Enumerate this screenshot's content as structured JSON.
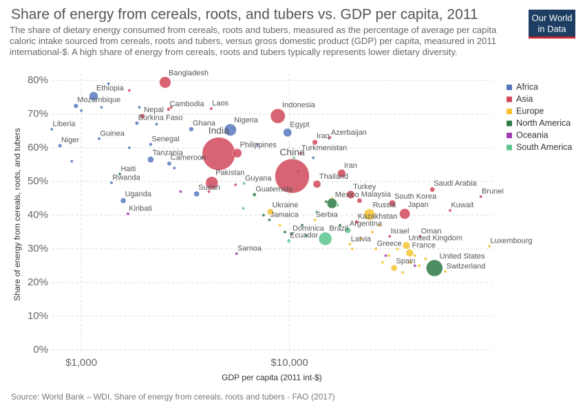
{
  "chart_data": {
    "type": "scatter",
    "title": "Share of energy from cereals, roots, and tubers vs. GDP per capita, 2011",
    "subtitle": "The share of dietary energy consumed from cereals, roots and tubers, measured as the percentage of average per capita caloric intake sourced from cereals, roots and tubers, versus gross domestic product (GDP) per capita, measured in 2011 international-$. A high share of energy from cereals, roots and tubers typically represents lower dietary diversity.",
    "logo": [
      "Our World",
      "in Data"
    ],
    "xlabel": "GDP per capita (2011 int-$)",
    "ylabel": "Share of energy from cereals, roots, and tubers",
    "source": "Source: World Bank – WDI, Share of energy from cereals, roots and tubers - FAO (2017)",
    "xscale": "log",
    "xlim": [
      720,
      94000
    ],
    "ylim": [
      0,
      82
    ],
    "xticks": [
      {
        "value": 1000,
        "label": "$1,000"
      },
      {
        "value": 10000,
        "label": "$10,000"
      }
    ],
    "yticks": [
      {
        "value": 0,
        "label": "0%"
      },
      {
        "value": 10,
        "label": "10%"
      },
      {
        "value": 20,
        "label": "20%"
      },
      {
        "value": 30,
        "label": "30%"
      },
      {
        "value": 40,
        "label": "40%"
      },
      {
        "value": 50,
        "label": "50%"
      },
      {
        "value": 60,
        "label": "60%"
      },
      {
        "value": 70,
        "label": "70%"
      },
      {
        "value": 80,
        "label": "80%"
      }
    ],
    "grid": true,
    "legend": "right",
    "series": [
      {
        "name": "Africa",
        "color": "#5778c0",
        "labels": [
          "Ethiopia",
          "Mozambique",
          "Liberia",
          "Burkina Faso",
          "Ghana",
          "Nigeria",
          "Egypt",
          "Guinea",
          "Niger",
          "Senegal",
          "Tanzania",
          "Cameroon",
          "Rwanda",
          "Sudan",
          "Uganda",
          null,
          null,
          null,
          null,
          null,
          null,
          null,
          null,
          null,
          null,
          null,
          null
        ],
        "x": [
          1146,
          942,
          721,
          1850,
          3375,
          5200,
          9780,
          1218,
          790,
          2153,
          2153,
          2645,
          1397,
          3580,
          1590,
          1000,
          1250,
          1700,
          1900,
          2300,
          1350,
          2800,
          900,
          7000,
          11000,
          13000,
          3800
        ],
        "y": [
          75.3,
          72.4,
          65.5,
          67.3,
          65.5,
          65.3,
          64.5,
          62.7,
          60.6,
          61,
          56.5,
          55.3,
          49.6,
          46.3,
          44.3,
          71,
          72,
          60,
          72,
          67,
          79,
          54,
          56,
          61,
          53,
          57,
          57
        ],
        "size": [
          90,
          24,
          4,
          16,
          25,
          165,
          82,
          11,
          17,
          13,
          46,
          21,
          11,
          36,
          35,
          5,
          4,
          6,
          4,
          5,
          3,
          4,
          2,
          3,
          4,
          5,
          3
        ]
      },
      {
        "name": "Asia",
        "color": "#d0485a",
        "labels": [
          "Bangladesh",
          "Nepal",
          "Cambodia",
          "Laos",
          "Indonesia",
          "Iraq",
          "Azerbaijan",
          "India",
          "Philippines",
          "Turkmenistan",
          "China",
          "Iran",
          "Thailand",
          "Pakistan",
          "Turkey",
          "Saudi Arabia",
          "Brunei",
          "Malaysia",
          "South Korea",
          "Kuwait",
          "Japan",
          "Kazakhstan",
          "Oman",
          "Israel",
          null,
          null,
          null,
          null
        ],
        "x": [
          2527,
          1967,
          2625,
          4207,
          8790,
          13250,
          15660,
          4570,
          5610,
          11300,
          10300,
          17800,
          13550,
          4236,
          19680,
          48500,
          83000,
          21700,
          31200,
          59100,
          35800,
          21000,
          42350,
          30300,
          1700,
          2700,
          5500,
          4100
        ],
        "y": [
          79.4,
          69.4,
          71.4,
          71.6,
          69.4,
          61.6,
          63,
          58.2,
          58.4,
          58.4,
          51.6,
          52.4,
          49.2,
          49.6,
          46.1,
          47.6,
          45.5,
          44.3,
          43.5,
          41.4,
          40.4,
          38,
          33.7,
          33.7,
          77,
          72,
          49,
          47
        ],
        "size": [
          150,
          27,
          14,
          6.5,
          245,
          32,
          9,
          1250,
          95,
          5,
          1350,
          75,
          67,
          176,
          74,
          28,
          0.4,
          29,
          50,
          3,
          128,
          16,
          3,
          8,
          4,
          3,
          2,
          3
        ]
      },
      {
        "name": "Europe",
        "color": "#f5c332",
        "labels": [
          "Ukraine",
          "Russia",
          "Serbia",
          "Latvia",
          "United Kingdom",
          "Luxembourg",
          "France",
          "Greece",
          "Spain",
          "Switzerland",
          null,
          null,
          null,
          null,
          null,
          null,
          null,
          null,
          null,
          null,
          null,
          null,
          null,
          null
        ],
        "x": [
          8090,
          24200,
          13250,
          19500,
          36400,
          91200,
          37800,
          26000,
          31800,
          56100,
          22000,
          25000,
          28000,
          30000,
          33000,
          35000,
          38000,
          40000,
          42000,
          45000,
          27000,
          20000,
          9000,
          16000
        ],
        "y": [
          41,
          40.2,
          38.6,
          31.4,
          31,
          30.8,
          28.8,
          30,
          24.3,
          23.3,
          33,
          35,
          26,
          28,
          30,
          23,
          26,
          28,
          25,
          27,
          37,
          30,
          37,
          45
        ],
        "size": [
          45,
          143,
          7,
          2,
          63,
          0.5,
          65,
          11,
          46,
          8,
          4,
          3,
          5,
          4,
          3,
          2,
          6,
          4,
          3,
          5,
          3,
          2,
          3,
          4
        ]
      },
      {
        "name": "North America",
        "color": "#2e7a45",
        "labels": [
          "Haiti",
          "Guatemala",
          "Mexico",
          "Jamaica",
          "Dominica",
          "United States",
          null,
          null,
          null,
          null,
          null,
          null
        ],
        "x": [
          1530,
          6790,
          16000,
          8000,
          10230,
          49700,
          7500,
          9500,
          11500,
          15000,
          17500,
          12000
        ],
        "y": [
          52.2,
          46.1,
          43.5,
          38.6,
          34.5,
          24.3,
          40,
          35,
          37,
          44,
          37,
          34
        ],
        "size": [
          10,
          15,
          117,
          2.7,
          0.07,
          312,
          2,
          2,
          2,
          3,
          2,
          2
        ]
      },
      {
        "name": "Oceania",
        "color": "#a23cb3",
        "labels": [
          "Kiribati",
          "Samoa",
          null,
          null,
          null
        ],
        "x": [
          1675,
          5570,
          3000,
          29000,
          40000
        ],
        "y": [
          40.4,
          28.6,
          47,
          28,
          25
        ],
        "size": [
          0.1,
          0.19,
          1,
          2,
          3
        ]
      },
      {
        "name": "South America",
        "color": "#5cc58e",
        "labels": [
          "Guyana",
          "Argentina",
          "Ecuador",
          "Brazil",
          null,
          null,
          null,
          null,
          null
        ],
        "x": [
          6050,
          19050,
          9930,
          14860,
          6000,
          12000,
          13500,
          17000,
          10500
        ],
        "y": [
          49.4,
          35.5,
          32.4,
          33,
          42,
          34,
          41,
          43,
          57
        ],
        "size": [
          0.8,
          41,
          15,
          197,
          3,
          3,
          4,
          3,
          4
        ]
      }
    ]
  }
}
